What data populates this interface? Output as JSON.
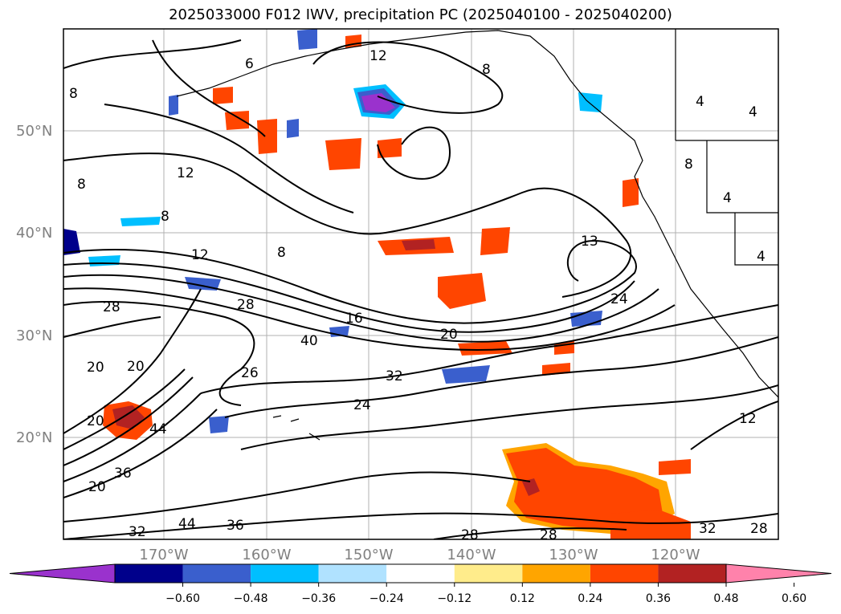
{
  "title": "2025033000 F012 IWV, precipitation PC (2025040100 - 2025040200)",
  "lat_labels": [
    "50°N",
    "40°N",
    "30°N",
    "20°N"
  ],
  "lon_labels": [
    "170°W",
    "160°W",
    "150°W",
    "140°W",
    "130°W",
    "120°W"
  ],
  "colorbar": {
    "ticks": [
      "−0.60",
      "−0.48",
      "−0.36",
      "−0.24",
      "−0.12",
      "0.12",
      "0.24",
      "0.36",
      "0.48",
      "0.60"
    ],
    "colors": [
      "#9a32cd",
      "#00008b",
      "#3a5fcd",
      "#00bfff",
      "#b0e2ff",
      "#ffffff",
      "#ffec8b",
      "#ffa500",
      "#ff4500",
      "#b22222",
      "#ff82ab"
    ]
  },
  "contour_labels": [
    "8",
    "12",
    "8",
    "8",
    "12",
    "8",
    "12",
    "8",
    "13",
    "4",
    "4",
    "8",
    "4",
    "4",
    "28",
    "28",
    "16",
    "20",
    "24",
    "40",
    "20",
    "20",
    "26",
    "32",
    "24",
    "44",
    "20",
    "36",
    "20",
    "12",
    "32",
    "44",
    "36",
    "28",
    "28",
    "32",
    "28",
    "6"
  ]
}
